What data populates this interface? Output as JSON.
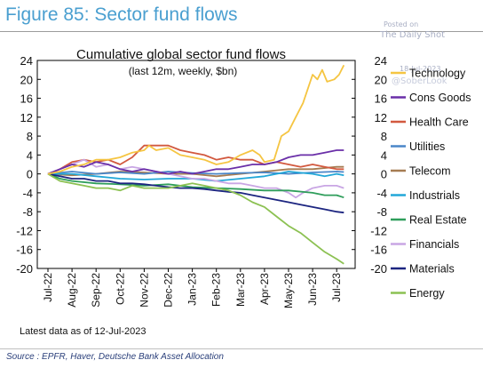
{
  "header": {
    "figure_title": "Figure 85: Sector fund flows",
    "posted_on": "Posted on",
    "posted_site": "The Daily Shot",
    "posted_date": "18-Jul-2023",
    "watermark": "@SoberLook"
  },
  "footer": {
    "latest_data": "Latest data as of 12-Jul-2023",
    "source": "Source : EPFR, Haver, Deutsche Bank Asset Allocation"
  },
  "colors": {
    "Technology": "#f5c542",
    "Cons Goods": "#6a2fa8",
    "Health Care": "#d2593f",
    "Utilities": "#4a86c8",
    "Telecom": "#a67c52",
    "Industrials": "#22a7d8",
    "Real Estate": "#2f9e5b",
    "Financials": "#c9a6e4",
    "Materials": "#1c2580",
    "Energy": "#8cc152"
  },
  "chart_data": {
    "type": "line",
    "title": "Cumulative global sector fund flows",
    "subtitle": "(last 12m, weekly, $bn)",
    "ylim": [
      -20,
      24
    ],
    "yticks": [
      24,
      20,
      16,
      12,
      8,
      4,
      0,
      -4,
      -8,
      -12,
      -16,
      -20
    ],
    "right_yticks": [
      24,
      20,
      16,
      12,
      8,
      4,
      0,
      -4,
      -8,
      -12,
      -16,
      -20
    ],
    "x_tick_labels": [
      "Jul-22",
      "Aug-22",
      "Sep-22",
      "Oct-22",
      "Nov-22",
      "Dec-22",
      "Jan-23",
      "Feb-23",
      "Mar-23",
      "Apr-23",
      "May-23",
      "Jun-23",
      "Jul-23"
    ],
    "grid": false,
    "legend_position": "right",
    "series": [
      {
        "name": "Technology",
        "points": [
          [
            0,
            0
          ],
          [
            0.5,
            0.5
          ],
          [
            1,
            1.5
          ],
          [
            1.5,
            2
          ],
          [
            2,
            3
          ],
          [
            2.5,
            3
          ],
          [
            3,
            3.5
          ],
          [
            3.5,
            4.5
          ],
          [
            4,
            5
          ],
          [
            4.2,
            6
          ],
          [
            4.5,
            5
          ],
          [
            5,
            5.5
          ],
          [
            5.5,
            4
          ],
          [
            6,
            3.5
          ],
          [
            6.5,
            3
          ],
          [
            7,
            2
          ],
          [
            7.5,
            2.5
          ],
          [
            8,
            4
          ],
          [
            8.5,
            5
          ],
          [
            8.8,
            4
          ],
          [
            9,
            2.5
          ],
          [
            9.4,
            3
          ],
          [
            9.7,
            8
          ],
          [
            10,
            9
          ],
          [
            10.3,
            12
          ],
          [
            10.6,
            15
          ],
          [
            10.8,
            18
          ],
          [
            11,
            21
          ],
          [
            11.2,
            20
          ],
          [
            11.4,
            22
          ],
          [
            11.6,
            19.5
          ],
          [
            11.9,
            20
          ],
          [
            12.1,
            21
          ],
          [
            12.3,
            23
          ]
        ]
      },
      {
        "name": "Cons Goods",
        "points": [
          [
            0,
            0
          ],
          [
            0.5,
            1
          ],
          [
            1,
            2
          ],
          [
            1.5,
            1.5
          ],
          [
            2,
            2.5
          ],
          [
            2.5,
            2
          ],
          [
            3,
            1
          ],
          [
            3.5,
            0.5
          ],
          [
            4,
            1
          ],
          [
            4.5,
            0.5
          ],
          [
            5,
            0
          ],
          [
            5.5,
            0.5
          ],
          [
            6,
            0
          ],
          [
            6.5,
            0.5
          ],
          [
            7,
            1
          ],
          [
            7.5,
            1
          ],
          [
            8,
            1.5
          ],
          [
            8.5,
            2
          ],
          [
            9,
            2
          ],
          [
            9.5,
            2.5
          ],
          [
            10,
            3.5
          ],
          [
            10.5,
            4
          ],
          [
            11,
            4
          ],
          [
            11.5,
            4.5
          ],
          [
            12,
            5
          ],
          [
            12.3,
            5
          ]
        ]
      },
      {
        "name": "Health Care",
        "points": [
          [
            0,
            0
          ],
          [
            0.5,
            1
          ],
          [
            1,
            2.5
          ],
          [
            1.5,
            3
          ],
          [
            2,
            2.5
          ],
          [
            2.5,
            3
          ],
          [
            3,
            2
          ],
          [
            3.5,
            3.5
          ],
          [
            4,
            6
          ],
          [
            4.5,
            6
          ],
          [
            5,
            6
          ],
          [
            5.5,
            5
          ],
          [
            6,
            4.5
          ],
          [
            6.5,
            4
          ],
          [
            7,
            3
          ],
          [
            7.5,
            3.5
          ],
          [
            8,
            3
          ],
          [
            8.5,
            3
          ],
          [
            9,
            2
          ],
          [
            9.5,
            2.5
          ],
          [
            10,
            2
          ],
          [
            10.5,
            1.5
          ],
          [
            11,
            2
          ],
          [
            11.5,
            1.5
          ],
          [
            12,
            1
          ],
          [
            12.3,
            1
          ]
        ]
      },
      {
        "name": "Utilities",
        "points": [
          [
            0,
            0
          ],
          [
            1,
            0.5
          ],
          [
            2,
            0
          ],
          [
            3,
            0.3
          ],
          [
            4,
            0
          ],
          [
            5,
            0.5
          ],
          [
            6,
            0.2
          ],
          [
            7,
            0
          ],
          [
            8,
            0.2
          ],
          [
            9,
            0.3
          ],
          [
            10,
            0
          ],
          [
            11,
            0.3
          ],
          [
            12,
            0.5
          ],
          [
            12.3,
            0.4
          ]
        ]
      },
      {
        "name": "Telecom",
        "points": [
          [
            0,
            0
          ],
          [
            1,
            -0.3
          ],
          [
            2,
            0
          ],
          [
            3,
            0.5
          ],
          [
            4,
            0.3
          ],
          [
            5,
            0
          ],
          [
            6,
            0
          ],
          [
            7,
            -0.5
          ],
          [
            8,
            0
          ],
          [
            9,
            0.5
          ],
          [
            10,
            1
          ],
          [
            11,
            1
          ],
          [
            12,
            1.5
          ],
          [
            12.3,
            1.5
          ]
        ]
      },
      {
        "name": "Industrials",
        "points": [
          [
            0,
            0
          ],
          [
            1,
            0
          ],
          [
            2,
            -0.5
          ],
          [
            3,
            -1
          ],
          [
            4,
            -1.2
          ],
          [
            5,
            -1
          ],
          [
            6,
            -1
          ],
          [
            7,
            -1.5
          ],
          [
            8,
            -1
          ],
          [
            9,
            -0.5
          ],
          [
            10,
            0.5
          ],
          [
            11,
            0
          ],
          [
            11.5,
            -0.5
          ],
          [
            12,
            0
          ],
          [
            12.3,
            -0.3
          ]
        ]
      },
      {
        "name": "Real Estate",
        "points": [
          [
            0,
            0
          ],
          [
            0.5,
            -1
          ],
          [
            1,
            -1.5
          ],
          [
            2,
            -2
          ],
          [
            3,
            -2.2
          ],
          [
            4,
            -2.5
          ],
          [
            5,
            -2.2
          ],
          [
            6,
            -2.8
          ],
          [
            7,
            -3
          ],
          [
            8,
            -3.2
          ],
          [
            9,
            -3.5
          ],
          [
            10,
            -3.5
          ],
          [
            11,
            -4
          ],
          [
            11.5,
            -4.5
          ],
          [
            12,
            -4.5
          ],
          [
            12.3,
            -5
          ]
        ]
      },
      {
        "name": "Financials",
        "points": [
          [
            0,
            0
          ],
          [
            0.5,
            1
          ],
          [
            1,
            2
          ],
          [
            1.5,
            3
          ],
          [
            2,
            1.5
          ],
          [
            2.5,
            2
          ],
          [
            3,
            1
          ],
          [
            3.5,
            1.5
          ],
          [
            4,
            1
          ],
          [
            4.5,
            0.5
          ],
          [
            5,
            0
          ],
          [
            5.5,
            -0.5
          ],
          [
            6,
            -1
          ],
          [
            6.5,
            -1
          ],
          [
            7,
            -1.5
          ],
          [
            7.5,
            -2
          ],
          [
            8,
            -2
          ],
          [
            8.5,
            -2.5
          ],
          [
            9,
            -3
          ],
          [
            9.5,
            -3
          ],
          [
            10,
            -4
          ],
          [
            10.3,
            -5
          ],
          [
            10.6,
            -4
          ],
          [
            11,
            -3
          ],
          [
            11.5,
            -2.5
          ],
          [
            12,
            -2.5
          ],
          [
            12.3,
            -3
          ]
        ]
      },
      {
        "name": "Materials",
        "points": [
          [
            0,
            0
          ],
          [
            0.5,
            -0.5
          ],
          [
            1,
            -1
          ],
          [
            1.5,
            -1
          ],
          [
            2,
            -1.5
          ],
          [
            2.5,
            -1.5
          ],
          [
            3,
            -2
          ],
          [
            3.5,
            -2
          ],
          [
            4,
            -2.2
          ],
          [
            4.5,
            -2.5
          ],
          [
            5,
            -2.8
          ],
          [
            5.5,
            -3
          ],
          [
            6,
            -3
          ],
          [
            6.5,
            -3.2
          ],
          [
            7,
            -3.5
          ],
          [
            7.5,
            -3.8
          ],
          [
            8,
            -4
          ],
          [
            8.5,
            -4.5
          ],
          [
            9,
            -5
          ],
          [
            9.5,
            -5.5
          ],
          [
            10,
            -6
          ],
          [
            10.5,
            -6.5
          ],
          [
            11,
            -7
          ],
          [
            11.5,
            -7.5
          ],
          [
            12,
            -8
          ],
          [
            12.3,
            -8.2
          ]
        ]
      },
      {
        "name": "Energy",
        "points": [
          [
            0,
            0
          ],
          [
            0.5,
            -1.5
          ],
          [
            1,
            -2
          ],
          [
            1.5,
            -2.5
          ],
          [
            2,
            -3
          ],
          [
            2.5,
            -3
          ],
          [
            3,
            -3.5
          ],
          [
            3.5,
            -2.5
          ],
          [
            4,
            -3
          ],
          [
            4.5,
            -3
          ],
          [
            5,
            -3
          ],
          [
            5.5,
            -2.5
          ],
          [
            6,
            -2
          ],
          [
            6.5,
            -2.5
          ],
          [
            7,
            -3
          ],
          [
            7.5,
            -3.5
          ],
          [
            8,
            -4.5
          ],
          [
            8.5,
            -6
          ],
          [
            9,
            -7
          ],
          [
            9.5,
            -9
          ],
          [
            10,
            -11
          ],
          [
            10.5,
            -12.5
          ],
          [
            11,
            -14.5
          ],
          [
            11.5,
            -16.5
          ],
          [
            12,
            -18
          ],
          [
            12.3,
            -19
          ]
        ]
      }
    ]
  }
}
